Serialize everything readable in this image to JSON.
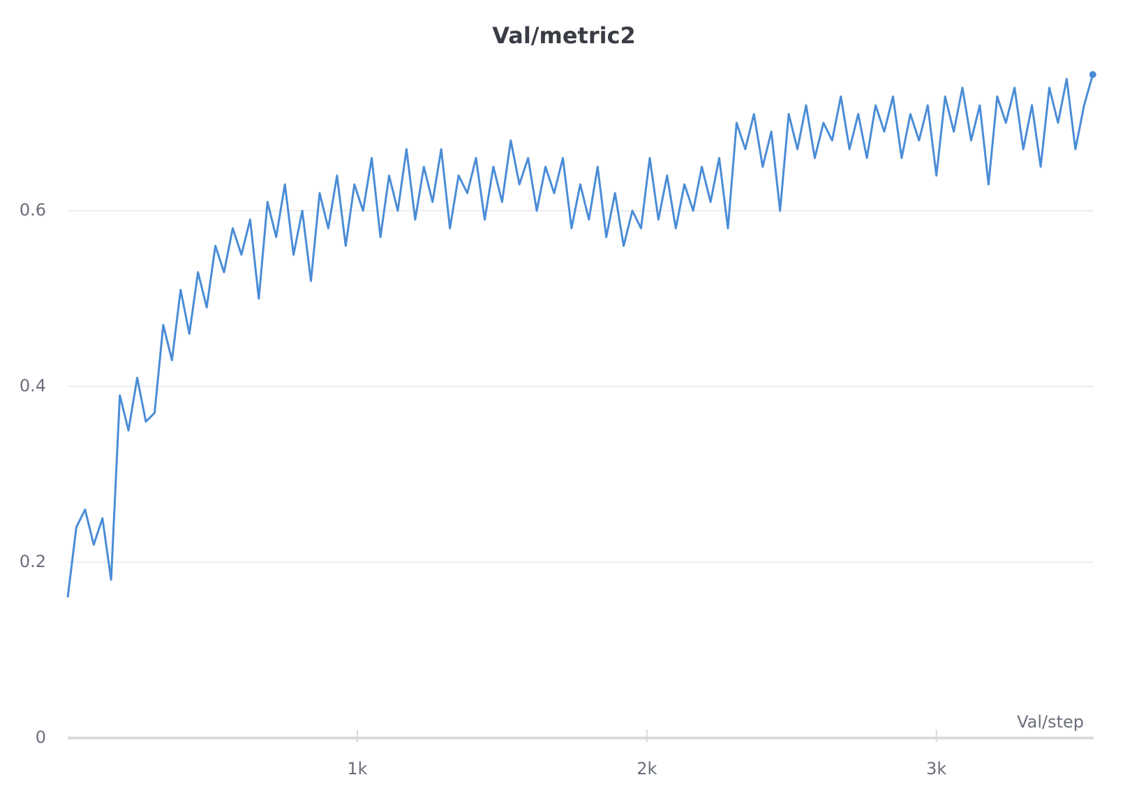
{
  "chart_data": {
    "type": "line",
    "title": "Val/metric2",
    "x_label": "Val/step",
    "x": [
      0,
      30,
      60,
      90,
      120,
      150,
      180,
      210,
      240,
      270,
      300,
      330,
      360,
      390,
      420,
      450,
      480,
      510,
      540,
      570,
      600,
      630,
      660,
      690,
      720,
      750,
      780,
      810,
      840,
      870,
      900,
      930,
      960,
      990,
      1020,
      1050,
      1080,
      1110,
      1140,
      1170,
      1200,
      1230,
      1260,
      1290,
      1320,
      1350,
      1380,
      1410,
      1440,
      1470,
      1500,
      1530,
      1560,
      1590,
      1620,
      1650,
      1680,
      1710,
      1740,
      1770,
      1800,
      1830,
      1860,
      1890,
      1920,
      1950,
      1980,
      2010,
      2040,
      2070,
      2100,
      2130,
      2160,
      2190,
      2220,
      2250,
      2280,
      2310,
      2340,
      2370,
      2400,
      2430,
      2460,
      2490,
      2520,
      2550,
      2580,
      2610,
      2640,
      2670,
      2700,
      2730,
      2760,
      2790,
      2820,
      2850,
      2880,
      2910,
      2940,
      2970,
      3000,
      3030,
      3060,
      3090,
      3120,
      3150,
      3180,
      3210,
      3240,
      3270,
      3300,
      3330,
      3360,
      3390,
      3420,
      3450,
      3480,
      3510,
      3540
    ],
    "values": [
      0.16,
      0.24,
      0.26,
      0.22,
      0.25,
      0.18,
      0.39,
      0.35,
      0.41,
      0.36,
      0.37,
      0.47,
      0.43,
      0.51,
      0.46,
      0.53,
      0.49,
      0.56,
      0.53,
      0.58,
      0.55,
      0.59,
      0.5,
      0.61,
      0.57,
      0.63,
      0.55,
      0.6,
      0.52,
      0.62,
      0.58,
      0.64,
      0.56,
      0.63,
      0.6,
      0.66,
      0.57,
      0.64,
      0.6,
      0.67,
      0.59,
      0.65,
      0.61,
      0.67,
      0.58,
      0.64,
      0.62,
      0.66,
      0.59,
      0.65,
      0.61,
      0.68,
      0.63,
      0.66,
      0.6,
      0.65,
      0.62,
      0.66,
      0.58,
      0.63,
      0.59,
      0.65,
      0.57,
      0.62,
      0.56,
      0.6,
      0.58,
      0.66,
      0.59,
      0.64,
      0.58,
      0.63,
      0.6,
      0.65,
      0.61,
      0.66,
      0.58,
      0.7,
      0.67,
      0.71,
      0.65,
      0.69,
      0.6,
      0.71,
      0.67,
      0.72,
      0.66,
      0.7,
      0.68,
      0.73,
      0.67,
      0.71,
      0.66,
      0.72,
      0.69,
      0.73,
      0.66,
      0.71,
      0.68,
      0.72,
      0.64,
      0.73,
      0.69,
      0.74,
      0.68,
      0.72,
      0.63,
      0.73,
      0.7,
      0.74,
      0.67,
      0.72,
      0.65,
      0.74,
      0.7,
      0.75,
      0.67,
      0.72,
      0.755
    ],
    "color": "#4a8cd6",
    "xlim": [
      0,
      3543
    ],
    "ylim": [
      0,
      0.766
    ],
    "xticks": [
      {
        "value": 1000,
        "label": "1k"
      },
      {
        "value": 2000,
        "label": "2k"
      },
      {
        "value": 3000,
        "label": "3k"
      }
    ],
    "yticks": [
      0,
      0.2,
      0.4,
      0.6
    ],
    "grid": true
  }
}
